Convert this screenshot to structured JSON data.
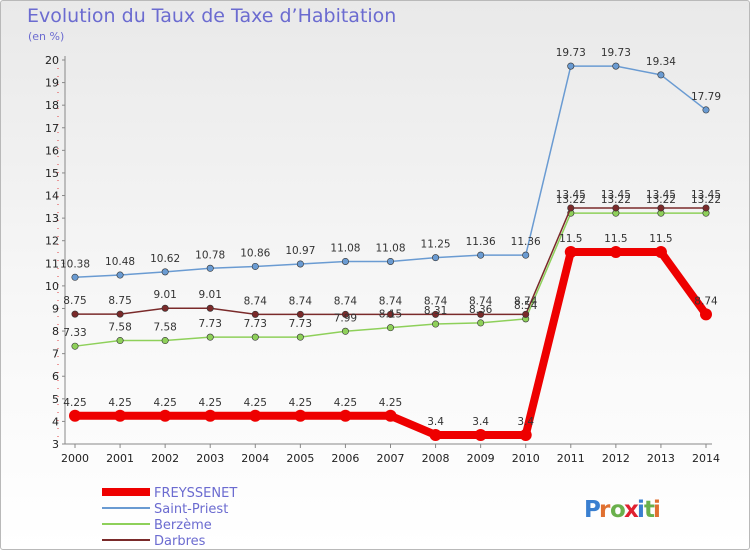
{
  "title": "Evolution du Taux de Taxe d’Habitation",
  "subtitle": "(en %)",
  "logo": "Proxiti",
  "chart_data": {
    "type": "line",
    "x": [
      2000,
      2001,
      2002,
      2003,
      2004,
      2005,
      2006,
      2007,
      2008,
      2009,
      2010,
      2011,
      2012,
      2013,
      2014
    ],
    "ylim": [
      3,
      20
    ],
    "yticks": [
      3,
      4,
      5,
      6,
      7,
      8,
      9,
      10,
      11,
      12,
      13,
      14,
      15,
      16,
      17,
      18,
      19,
      20
    ],
    "grid": false,
    "legend": "bottom-left",
    "series": [
      {
        "name": "FREYSSENET",
        "color": "#ee0000",
        "values": [
          4.25,
          4.25,
          4.25,
          4.25,
          4.25,
          4.25,
          4.25,
          4.25,
          3.4,
          3.4,
          3.4,
          11.5,
          11.5,
          11.5,
          8.74
        ],
        "labels": [
          "4.25",
          "4.25",
          "4.25",
          "4.25",
          "4.25",
          "4.25",
          "4.25",
          "4.25",
          "3.4",
          "3.4",
          "3.4",
          "11.5",
          "11.5",
          "11.5",
          "8.74"
        ]
      },
      {
        "name": "Saint-Priest",
        "color": "#6a9bd2",
        "values": [
          10.38,
          10.48,
          10.62,
          10.78,
          10.86,
          10.97,
          11.08,
          11.08,
          11.25,
          11.36,
          11.36,
          19.73,
          19.73,
          19.34,
          17.79
        ],
        "labels": [
          "10.38",
          "10.48",
          "10.62",
          "10.78",
          "10.86",
          "10.97",
          "11.08",
          "11.08",
          "11.25",
          "11.36",
          "11.36",
          "19.73",
          "19.73",
          "19.34",
          "17.79"
        ]
      },
      {
        "name": "Berzème",
        "color": "#8ed05a",
        "values": [
          7.33,
          7.58,
          7.58,
          7.73,
          7.73,
          7.73,
          7.99,
          8.15,
          8.31,
          8.36,
          8.54,
          13.22,
          13.22,
          13.22,
          13.22
        ],
        "labels": [
          "7.33",
          "7.58",
          "7.58",
          "7.73",
          "7.73",
          "7.73",
          "7.99",
          "8.15",
          "8.31",
          "8.36",
          "8.54",
          "13.22",
          "13.22",
          "13.22",
          "13.22"
        ]
      },
      {
        "name": "Darbres",
        "color": "#7a2a2a",
        "values": [
          8.75,
          8.75,
          9.01,
          9.01,
          8.74,
          8.74,
          8.74,
          8.74,
          8.74,
          8.74,
          8.74,
          13.45,
          13.45,
          13.45,
          13.45
        ],
        "labels": [
          "8.75",
          "8.75",
          "9.01",
          "9.01",
          "8.74",
          "8.74",
          "8.74",
          "8.74",
          "8.74",
          "8.74",
          "8.74",
          "13.45",
          "13.45",
          "13.45",
          "13.45"
        ]
      }
    ]
  }
}
